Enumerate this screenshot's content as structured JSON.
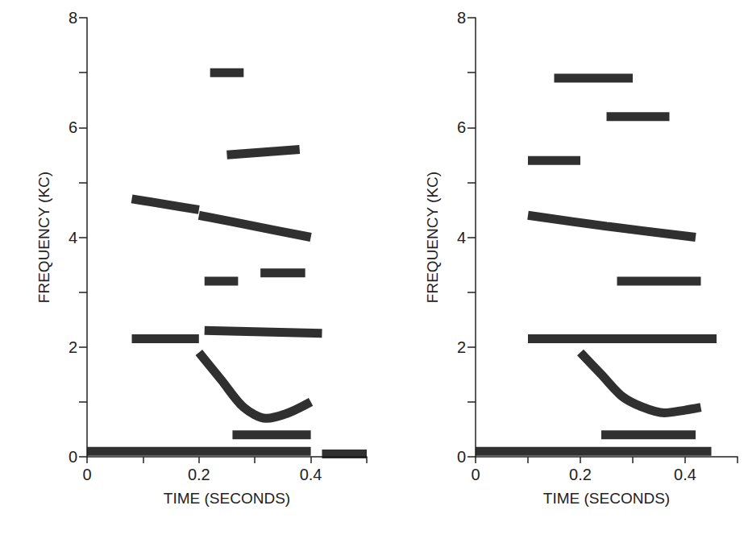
{
  "chart_data": [
    {
      "type": "line",
      "x_label": "TIME (SECONDS)",
      "y_label": "FREQUENCY (KC)",
      "xlim": [
        0,
        0.5
      ],
      "xticks": [
        0,
        0.2,
        0.4
      ],
      "ylim": [
        0,
        8
      ],
      "yticks": [
        0,
        2,
        4,
        6,
        8
      ],
      "grid": false,
      "color": "#1a1a1a",
      "series": [
        {
          "x": [
            0,
            0.4
          ],
          "values": [
            0.1,
            0.1
          ]
        },
        {
          "x": [
            0.42,
            0.5
          ],
          "values": [
            0.05,
            0.05
          ]
        },
        {
          "x": [
            0.2,
            0.24,
            0.28,
            0.32,
            0.36,
            0.4
          ],
          "values": [
            1.9,
            1.4,
            0.9,
            0.7,
            0.8,
            1.0
          ]
        },
        {
          "x": [
            0.26,
            0.4
          ],
          "values": [
            0.4,
            0.4
          ]
        },
        {
          "x": [
            0.08,
            0.2
          ],
          "values": [
            2.15,
            2.15
          ]
        },
        {
          "x": [
            0.21,
            0.42
          ],
          "values": [
            2.3,
            2.25
          ]
        },
        {
          "x": [
            0.21,
            0.27
          ],
          "values": [
            3.2,
            3.2
          ]
        },
        {
          "x": [
            0.31,
            0.39
          ],
          "values": [
            3.35,
            3.35
          ]
        },
        {
          "x": [
            0.08,
            0.14,
            0.2
          ],
          "values": [
            4.7,
            4.6,
            4.5
          ]
        },
        {
          "x": [
            0.2,
            0.3,
            0.4
          ],
          "values": [
            4.4,
            4.2,
            4.0
          ]
        },
        {
          "x": [
            0.25,
            0.38
          ],
          "values": [
            5.5,
            5.6
          ]
        },
        {
          "x": [
            0.22,
            0.28
          ],
          "values": [
            7.0,
            7.0
          ]
        }
      ]
    },
    {
      "type": "line",
      "x_label": "TIME (SECONDS)",
      "y_label": "FREQUENCY (KC)",
      "xlim": [
        0,
        0.5
      ],
      "xticks": [
        0,
        0.2,
        0.4
      ],
      "ylim": [
        0,
        8
      ],
      "yticks": [
        0,
        2,
        4,
        6,
        8
      ],
      "grid": false,
      "color": "#1a1a1a",
      "series": [
        {
          "x": [
            0,
            0.45
          ],
          "values": [
            0.1,
            0.1
          ]
        },
        {
          "x": [
            0.2,
            0.24,
            0.28,
            0.32,
            0.36,
            0.4,
            0.43
          ],
          "values": [
            1.9,
            1.5,
            1.1,
            0.9,
            0.8,
            0.85,
            0.9
          ]
        },
        {
          "x": [
            0.24,
            0.42
          ],
          "values": [
            0.4,
            0.4
          ]
        },
        {
          "x": [
            0.1,
            0.46
          ],
          "values": [
            2.15,
            2.15
          ]
        },
        {
          "x": [
            0.27,
            0.43
          ],
          "values": [
            3.2,
            3.2
          ]
        },
        {
          "x": [
            0.1,
            0.25,
            0.42
          ],
          "values": [
            4.4,
            4.2,
            4.0
          ]
        },
        {
          "x": [
            0.1,
            0.2
          ],
          "values": [
            5.4,
            5.4
          ]
        },
        {
          "x": [
            0.25,
            0.37
          ],
          "values": [
            6.2,
            6.2
          ]
        },
        {
          "x": [
            0.15,
            0.3
          ],
          "values": [
            6.9,
            6.9
          ]
        }
      ]
    }
  ]
}
